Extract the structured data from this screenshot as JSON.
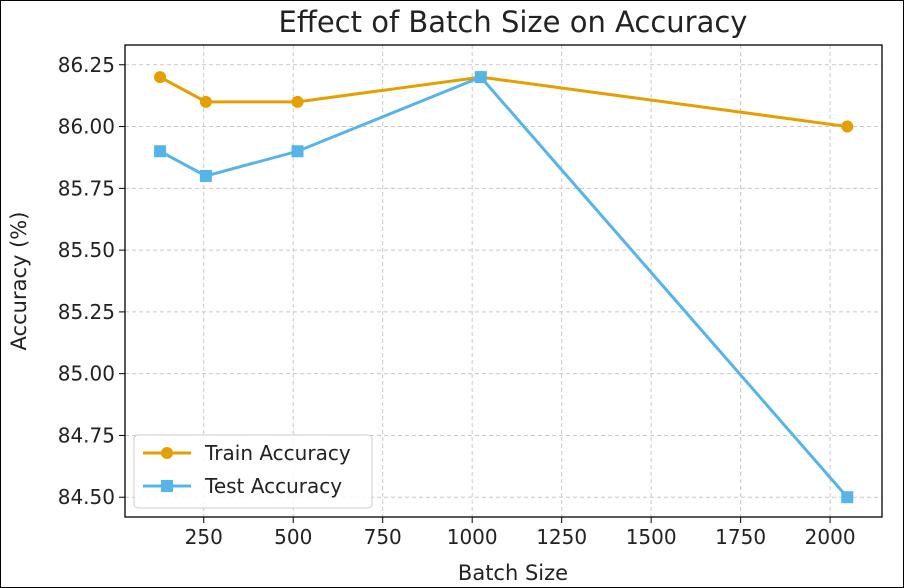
{
  "chart_data": {
    "type": "line",
    "title": "Effect of Batch Size on Accuracy",
    "xlabel": "Batch Size",
    "ylabel": "Accuracy (%)",
    "x": [
      128,
      256,
      512,
      1024,
      2048
    ],
    "series": [
      {
        "name": "Train Accuracy",
        "values": [
          86.2,
          86.1,
          86.1,
          86.2,
          86.0
        ],
        "color": "#E69F00",
        "marker": "circle"
      },
      {
        "name": "Test Accuracy",
        "values": [
          85.9,
          85.8,
          85.9,
          86.2,
          84.5
        ],
        "color": "#56B4E9",
        "marker": "square"
      }
    ],
    "xticks": [
      250,
      500,
      750,
      1000,
      1250,
      1500,
      1750,
      2000
    ],
    "xtick_labels": [
      "250",
      "500",
      "750",
      "1000",
      "1250",
      "1500",
      "1750",
      "2000"
    ],
    "yticks": [
      84.5,
      84.75,
      85.0,
      85.25,
      85.5,
      85.75,
      86.0,
      86.25
    ],
    "ytick_labels": [
      "84.50",
      "84.75",
      "85.00",
      "85.25",
      "85.50",
      "85.75",
      "86.00",
      "86.25"
    ],
    "xlim": [
      30,
      2145
    ],
    "ylim": [
      84.42,
      86.33
    ],
    "grid": true,
    "legend_position": "lower-left"
  }
}
